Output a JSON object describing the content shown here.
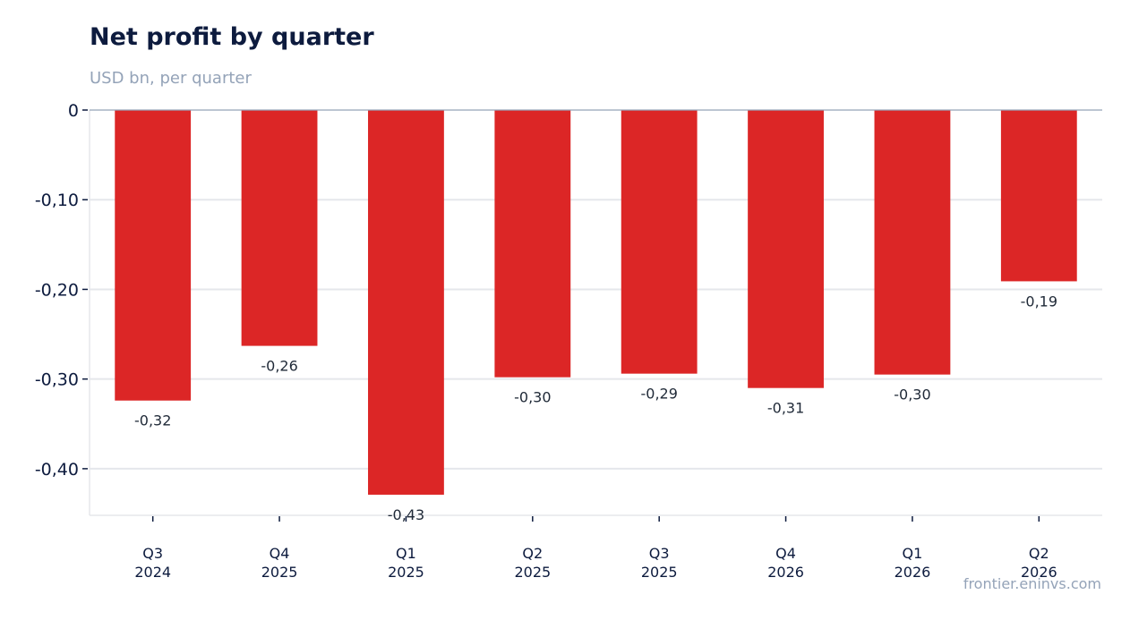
{
  "chart_data": {
    "type": "bar",
    "title": "Net profit by quarter",
    "subtitle": "USD bn, per quarter",
    "categories": [
      [
        "Q3",
        "2024"
      ],
      [
        "Q4",
        "2025"
      ],
      [
        "Q1",
        "2025"
      ],
      [
        "Q2",
        "2025"
      ],
      [
        "Q3",
        "2025"
      ],
      [
        "Q4",
        "2026"
      ],
      [
        "Q1",
        "2026"
      ],
      [
        "Q2",
        "2026"
      ]
    ],
    "values": [
      -0.324,
      -0.263,
      -0.429,
      -0.298,
      -0.294,
      -0.31,
      -0.295,
      -0.191
    ],
    "data_labels": [
      "-0,32",
      "-0,26",
      "-0,43",
      "-0,30",
      "-0,29",
      "-0,31",
      "-0,30",
      "-0,19"
    ],
    "ylim": [
      -0.452,
      0
    ],
    "y_ticks": [
      0,
      -0.1,
      -0.2,
      -0.3,
      -0.4
    ],
    "y_tick_labels": [
      "0",
      "-0,10",
      "-0,20",
      "-0,30",
      "-0,40"
    ],
    "grid": "horizontal",
    "bar_color": "#dc2626",
    "grid_color": "#e5e7eb"
  },
  "source": "frontier.eninvs.com"
}
